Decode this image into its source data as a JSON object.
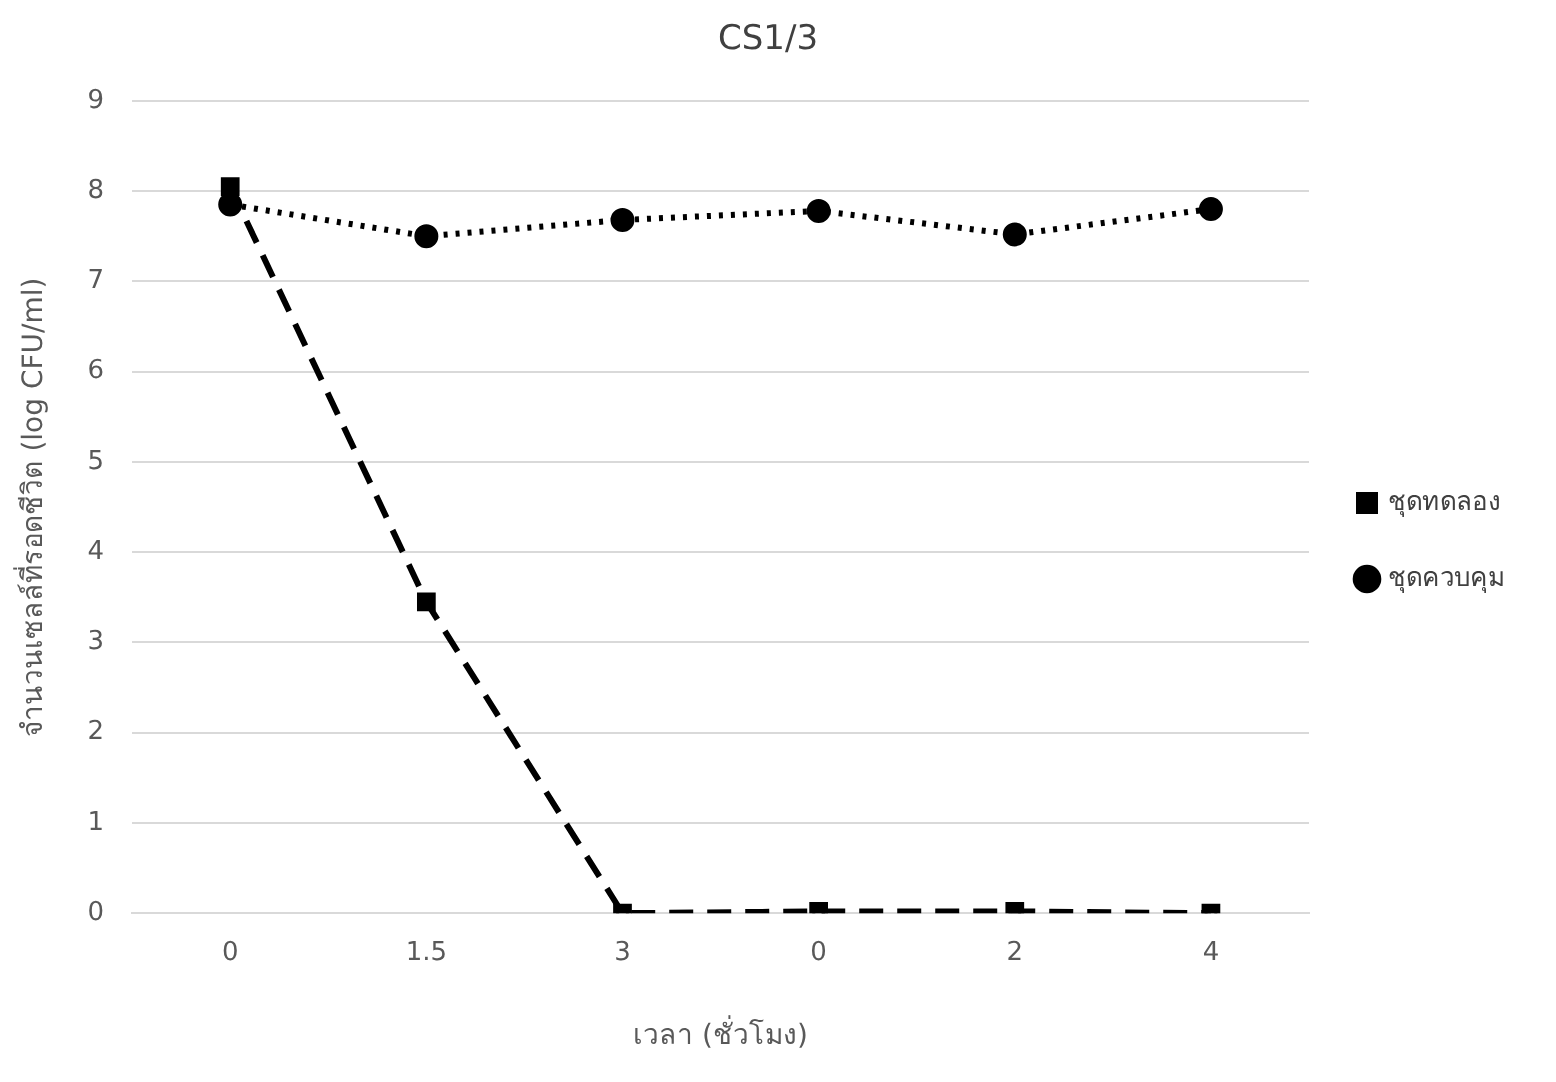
{
  "chart_data": {
    "type": "line",
    "title": "CS1/3",
    "xlabel": "เวลา (ชั่วโมง)",
    "ylabel": "จำนวนเซลล์ที่รอดชีวิต (log CFU/ml)",
    "categories": [
      "0",
      "1.5",
      "3",
      "0",
      "2",
      "4"
    ],
    "series": [
      {
        "name": "ชุดทดลอง",
        "color": "#000000",
        "line_style": "dashed",
        "marker": "square",
        "values": [
          8.05,
          3.45,
          0,
          0.02,
          0.02,
          0
        ]
      },
      {
        "name": "ชุดควบคุม",
        "color": "#000000",
        "line_style": "dotted",
        "marker": "circle",
        "values": [
          7.85,
          7.5,
          7.68,
          7.78,
          7.52,
          7.8
        ]
      }
    ],
    "ylim": [
      0,
      9
    ],
    "yticks": [
      0,
      1,
      2,
      3,
      4,
      5,
      6,
      7,
      8,
      9
    ],
    "grid": "y",
    "legend": "right"
  }
}
